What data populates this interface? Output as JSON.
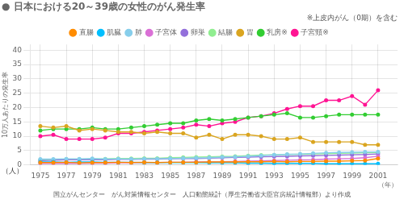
{
  "chart_data": {
    "type": "line",
    "title": "● 日本における20～39歳の女性のがん発生率",
    "subtitle": "※上皮内がん（0期）を含む",
    "y_label": "10万人あたりの発生率",
    "x_label": "（年）",
    "annotations": [
      "（人）",
      "国立がんセンター　がん対策情報センター　人口動態統計（厚生労働省大臣官房統計情報部）より作成"
    ],
    "x": [
      1975,
      1976,
      1977,
      1978,
      1979,
      1980,
      1981,
      1982,
      1983,
      1984,
      1985,
      1986,
      1987,
      1988,
      1989,
      1990,
      1991,
      1992,
      1993,
      1994,
      1995,
      1996,
      1997,
      1998,
      1999,
      2000,
      2001
    ],
    "series": [
      {
        "name": "直腸",
        "color": "#FF8C00",
        "values": [
          0.8,
          0.8,
          0.9,
          0.7,
          0.8,
          0.8,
          0.9,
          0.8,
          0.9,
          0.8,
          0.9,
          0.9,
          0.9,
          1.0,
          1.0,
          1.0,
          1.1,
          1.1,
          1.2,
          1.1,
          1.2,
          1.2,
          1.3,
          1.3,
          1.4,
          1.5,
          2.2
        ]
      },
      {
        "name": "肌臓",
        "color": "#00BFFF",
        "values": [
          1.0,
          1.0,
          0.9,
          1.0,
          1.0,
          0.9,
          0.9,
          0.9,
          0.8,
          0.8,
          0.8,
          0.8,
          0.8,
          0.7,
          0.7,
          0.7,
          0.6,
          0.6,
          0.5,
          0.5,
          0.5,
          0.5,
          0.4,
          0.4,
          0.4,
          0.4,
          0.4
        ]
      },
      {
        "name": "肺",
        "color": "#87CEEB",
        "values": [
          2.0,
          2.0,
          2.1,
          2.1,
          2.2,
          2.0,
          2.1,
          2.0,
          2.1,
          2.1,
          2.2,
          2.3,
          2.4,
          2.5,
          2.7,
          2.8,
          3.0,
          3.2,
          3.5,
          3.7,
          3.8,
          4.0,
          4.2,
          4.3,
          4.4,
          4.5,
          4.5
        ]
      },
      {
        "name": "子宮体",
        "color": "#DA70D6",
        "values": [
          0.5,
          0.5,
          0.6,
          0.5,
          0.6,
          0.6,
          0.7,
          0.7,
          0.8,
          0.8,
          0.9,
          0.9,
          1.0,
          1.0,
          1.1,
          1.2,
          1.3,
          1.4,
          1.5,
          1.6,
          1.7,
          1.8,
          2.0,
          2.1,
          2.2,
          2.5,
          3.0
        ]
      },
      {
        "name": "卵巣",
        "color": "#9370DB",
        "values": [
          1.5,
          1.6,
          1.8,
          1.8,
          1.8,
          1.8,
          1.9,
          1.9,
          2.0,
          2.0,
          2.1,
          2.2,
          2.2,
          2.3,
          2.5,
          2.6,
          2.7,
          2.8,
          2.9,
          3.0,
          3.1,
          3.2,
          3.3,
          3.4,
          3.5,
          3.6,
          3.8
        ]
      },
      {
        "name": "結腸",
        "color": "#90EE90",
        "values": [
          1.8,
          1.8,
          1.9,
          1.9,
          2.0,
          2.1,
          2.2,
          2.2,
          2.3,
          2.3,
          2.5,
          2.6,
          2.7,
          2.8,
          2.9,
          3.0,
          3.2,
          3.4,
          3.5,
          3.6,
          3.7,
          3.8,
          3.9,
          4.0,
          4.1,
          4.2,
          4.3
        ]
      },
      {
        "name": "胃",
        "color": "#DAA520",
        "values": [
          13.5,
          13.0,
          13.5,
          12.0,
          12.5,
          12.0,
          11.5,
          11.5,
          11.0,
          11.5,
          11.0,
          11.0,
          9.5,
          10.5,
          9.0,
          10.5,
          10.5,
          10.0,
          9.0,
          9.0,
          9.5,
          8.0,
          8.0,
          8.0,
          8.0,
          7.0,
          7.0
        ]
      },
      {
        "name": "乳房※",
        "color": "#32CD32",
        "values": [
          12.0,
          12.5,
          12.5,
          12.5,
          13.0,
          12.5,
          12.5,
          13.0,
          13.5,
          14.0,
          14.5,
          14.5,
          15.5,
          16.0,
          15.5,
          16.0,
          16.5,
          17.0,
          17.5,
          18.0,
          16.5,
          16.5,
          17.0,
          17.5,
          17.5,
          17.5,
          17.5
        ]
      },
      {
        "name": "子宮頸※",
        "color": "#FF1493",
        "values": [
          10.0,
          10.5,
          9.0,
          9.0,
          9.0,
          9.5,
          11.0,
          11.0,
          11.5,
          12.0,
          12.5,
          13.0,
          14.0,
          13.5,
          14.5,
          15.0,
          16.5,
          17.0,
          18.0,
          19.5,
          20.5,
          20.5,
          22.5,
          22.5,
          24.0,
          21.0,
          26.0
        ]
      }
    ],
    "xlim": [
      1974.2,
      2002.5
    ],
    "xticks": [
      1975,
      1977,
      1979,
      1981,
      1983,
      1985,
      1987,
      1989,
      1991,
      1993,
      1995,
      1997,
      1999,
      2001
    ],
    "ylim": [
      0,
      42
    ],
    "yticks": [
      0,
      5,
      10,
      15,
      20,
      25,
      30,
      35,
      40
    ],
    "grid": true,
    "legend": "top",
    "marker": "circle",
    "line_style": "solid"
  }
}
